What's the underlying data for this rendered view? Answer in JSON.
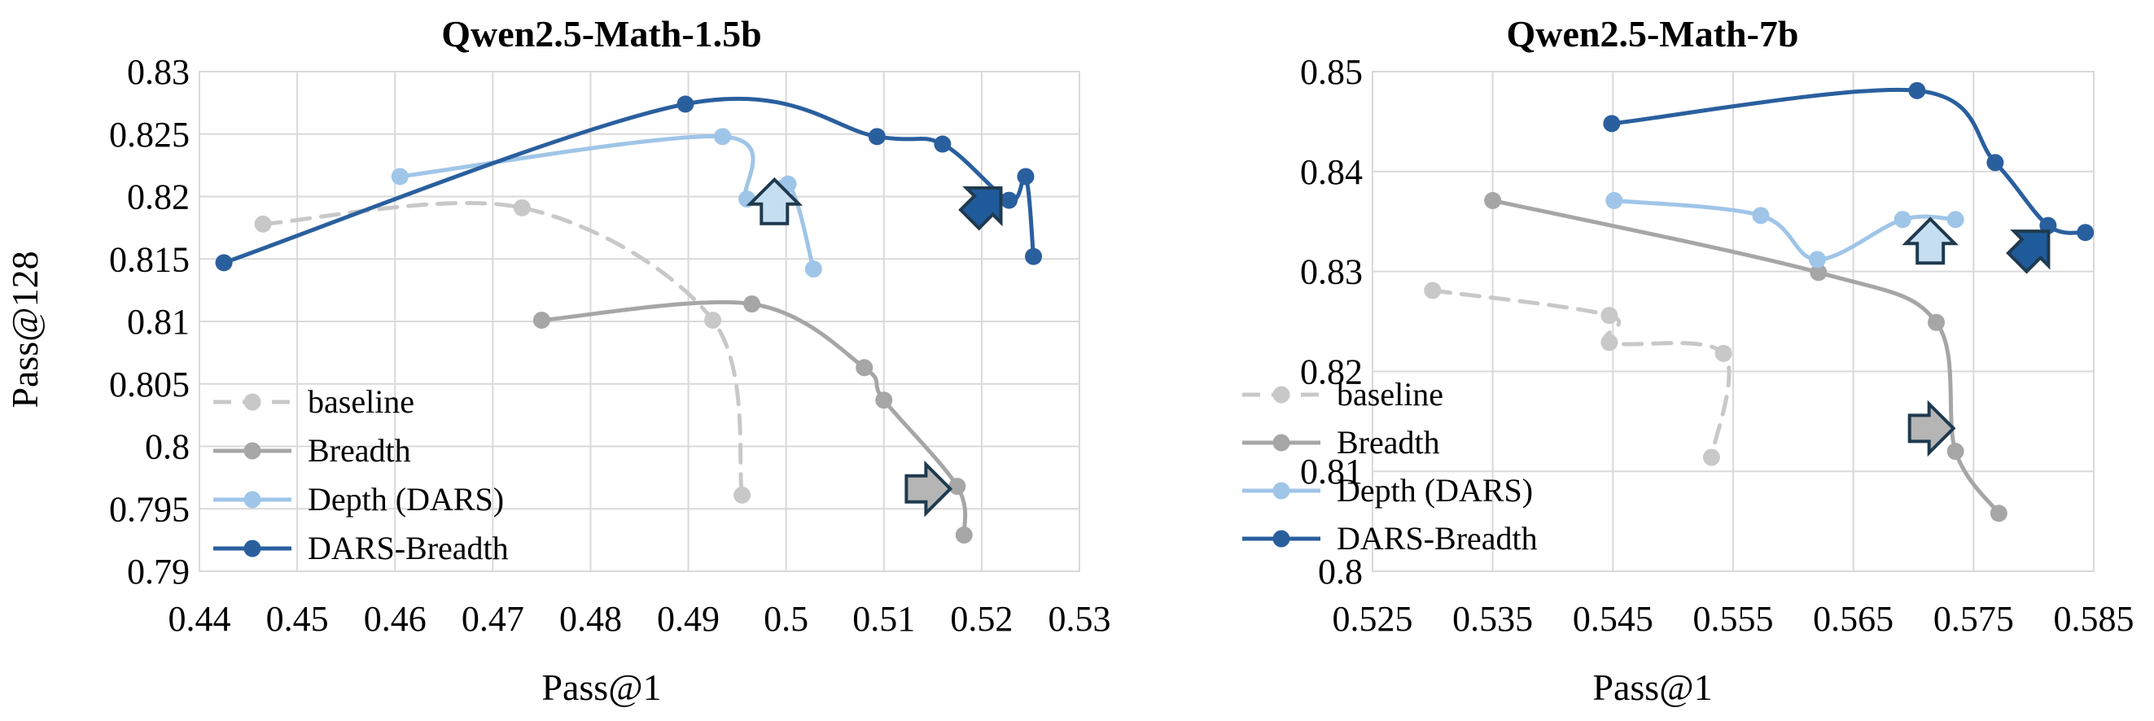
{
  "colors": {
    "baseline": "#c8c8c8",
    "breadth": "#a6a6a6",
    "depth": "#9fc5e8",
    "dars_breadth": "#2a5f9e",
    "arrow_gray": "#b5b5b5",
    "arrow_light": "#c6def1",
    "arrow_dark": "#1f5a9a",
    "arrow_outline": "#1f3a4f"
  },
  "chart_data": [
    {
      "type": "line",
      "title": "Qwen2.5-Math-1.5b",
      "xlabel": "Pass@1",
      "ylabel": "Pass@128",
      "xlim": [
        0.44,
        0.53
      ],
      "ylim": [
        0.79,
        0.83
      ],
      "x_ticks": [
        "0.44",
        "0.45",
        "0.46",
        "0.47",
        "0.48",
        "0.49",
        "0.5",
        "0.51",
        "0.52",
        "0.53"
      ],
      "y_ticks": [
        "0.79",
        "0.795",
        "0.8",
        "0.805",
        "0.81",
        "0.815",
        "0.82",
        "0.825",
        "0.83"
      ],
      "grid": true,
      "legend_position": "bottom-left",
      "series": [
        {
          "name": "baseline",
          "style": "dashed",
          "points": [
            [
              0.4465,
              0.8178
            ],
            [
              0.473,
              0.8191
            ],
            [
              0.4925,
              0.8101
            ],
            [
              0.4955,
              0.7961
            ]
          ]
        },
        {
          "name": "Breadth",
          "style": "solid",
          "points": [
            [
              0.475,
              0.8101
            ],
            [
              0.4965,
              0.8114
            ],
            [
              0.508,
              0.8063
            ],
            [
              0.51,
              0.8037
            ],
            [
              0.5175,
              0.7968
            ],
            [
              0.5182,
              0.7929
            ]
          ]
        },
        {
          "name": "Depth (DARS)",
          "style": "solid",
          "points": [
            [
              0.4605,
              0.8216
            ],
            [
              0.4935,
              0.8248
            ],
            [
              0.496,
              0.8198
            ],
            [
              0.5002,
              0.821
            ],
            [
              0.5028,
              0.8142
            ]
          ]
        },
        {
          "name": "DARS-Breadth",
          "style": "solid",
          "points": [
            [
              0.4425,
              0.8147
            ],
            [
              0.4897,
              0.8274
            ],
            [
              0.5093,
              0.8248
            ],
            [
              0.516,
              0.8242
            ],
            [
              0.5228,
              0.8197
            ],
            [
              0.5245,
              0.8216
            ],
            [
              0.5253,
              0.8152
            ]
          ]
        }
      ],
      "arrows": [
        {
          "x": 0.4988,
          "y": 0.8194,
          "direction": "up",
          "style": "light"
        },
        {
          "x": 0.5202,
          "y": 0.8193,
          "direction": "up-right",
          "style": "dark"
        },
        {
          "x": 0.5143,
          "y": 0.7966,
          "direction": "right",
          "style": "gray"
        }
      ]
    },
    {
      "type": "line",
      "title": "Qwen2.5-Math-7b",
      "xlabel": "Pass@1",
      "ylabel": "",
      "xlim": [
        0.525,
        0.585
      ],
      "ylim": [
        0.8,
        0.85
      ],
      "x_ticks": [
        "0.525",
        "0.535",
        "0.545",
        "0.555",
        "0.565",
        "0.575",
        "0.585"
      ],
      "y_ticks": [
        "0.8",
        "0.81",
        "0.82",
        "0.83",
        "0.84",
        "0.85"
      ],
      "grid": true,
      "legend_position": "bottom-left",
      "series": [
        {
          "name": "baseline",
          "style": "dashed",
          "points": [
            [
              0.53,
              0.8281
            ],
            [
              0.5447,
              0.8256
            ],
            [
              0.5447,
              0.8229
            ],
            [
              0.5542,
              0.8218
            ],
            [
              0.5532,
              0.8114
            ]
          ]
        },
        {
          "name": "Breadth",
          "style": "solid",
          "points": [
            [
              0.535,
              0.8371
            ],
            [
              0.5621,
              0.8299
            ],
            [
              0.5719,
              0.8249
            ],
            [
              0.5735,
              0.812
            ],
            [
              0.5771,
              0.8058
            ]
          ]
        },
        {
          "name": "Depth (DARS)",
          "style": "solid",
          "points": [
            [
              0.5451,
              0.8371
            ],
            [
              0.5573,
              0.8356
            ],
            [
              0.562,
              0.8312
            ],
            [
              0.5691,
              0.8352
            ],
            [
              0.5735,
              0.8352
            ]
          ]
        },
        {
          "name": "DARS-Breadth",
          "style": "solid",
          "points": [
            [
              0.5449,
              0.8448
            ],
            [
              0.5703,
              0.8481
            ],
            [
              0.5768,
              0.8409
            ],
            [
              0.5812,
              0.8346
            ],
            [
              0.5843,
              0.8339
            ]
          ]
        }
      ],
      "arrows": [
        {
          "x": 0.5714,
          "y": 0.8328,
          "direction": "up",
          "style": "light"
        },
        {
          "x": 0.5798,
          "y": 0.8323,
          "direction": "up-right",
          "style": "dark"
        },
        {
          "x": 0.5713,
          "y": 0.8143,
          "direction": "right",
          "style": "gray"
        }
      ]
    }
  ]
}
